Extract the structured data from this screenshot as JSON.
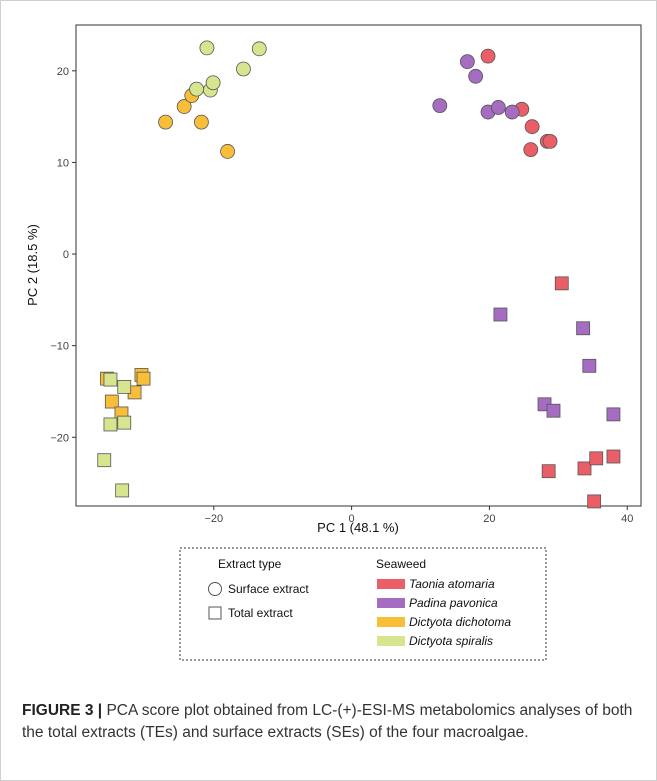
{
  "chart_data": {
    "type": "scatter",
    "xlabel": "PC 1 (48.1 %)",
    "ylabel": "PC 2 (18.5 %)",
    "xlim": [
      -40,
      42
    ],
    "ylim": [
      -27.5,
      25
    ],
    "x_ticks": [
      -20,
      0,
      20,
      40
    ],
    "y_ticks": [
      20,
      10,
      0,
      -10,
      -20
    ],
    "grid": false,
    "legend": {
      "extract_title": "Extract type",
      "extract_items": [
        {
          "name": "Surface extract",
          "shape": "circle"
        },
        {
          "name": "Total extract",
          "shape": "square"
        }
      ],
      "seaweed_title": "Seaweed",
      "placement": "bottom"
    },
    "series": [
      {
        "name": "Taonia atomaria",
        "color": "#EA5F67",
        "surface": [
          [
            19.8,
            21.6
          ],
          [
            24.7,
            15.8
          ],
          [
            26.2,
            13.9
          ],
          [
            28.4,
            12.3
          ],
          [
            28.8,
            12.3
          ],
          [
            26.0,
            11.4
          ]
        ],
        "total": [
          [
            30.5,
            -3.2
          ],
          [
            28.6,
            -23.7
          ],
          [
            33.8,
            -23.4
          ],
          [
            35.5,
            -22.3
          ],
          [
            38.0,
            -22.1
          ],
          [
            35.2,
            -27.0
          ]
        ]
      },
      {
        "name": "Padina pavonica",
        "color": "#A56CC1",
        "surface": [
          [
            16.8,
            21.0
          ],
          [
            18.0,
            19.4
          ],
          [
            12.8,
            16.2
          ],
          [
            19.8,
            15.5
          ],
          [
            21.3,
            16.0
          ],
          [
            23.3,
            15.5
          ]
        ],
        "total": [
          [
            21.6,
            -6.6
          ],
          [
            33.6,
            -8.1
          ],
          [
            34.5,
            -12.2
          ],
          [
            28.0,
            -16.4
          ],
          [
            29.3,
            -17.1
          ],
          [
            38.0,
            -17.5
          ]
        ]
      },
      {
        "name": "Dictyota dichotoma",
        "color": "#F8BE3A",
        "surface": [
          [
            -27.0,
            14.4
          ],
          [
            -24.3,
            16.1
          ],
          [
            -23.2,
            17.3
          ],
          [
            -21.8,
            14.4
          ],
          [
            -18.0,
            11.2
          ]
        ],
        "total": [
          [
            -35.5,
            -13.6
          ],
          [
            -30.5,
            -13.2
          ],
          [
            -30.2,
            -13.6
          ],
          [
            -34.8,
            -16.1
          ],
          [
            -31.5,
            -15.1
          ],
          [
            -33.4,
            -17.4
          ]
        ]
      },
      {
        "name": "Dictyota spiralis",
        "color": "#D7E58F",
        "surface": [
          [
            -22.5,
            18.0
          ],
          [
            -20.5,
            17.9
          ],
          [
            -20.1,
            18.7
          ],
          [
            -21.0,
            22.5
          ],
          [
            -15.7,
            20.2
          ],
          [
            -13.4,
            22.4
          ]
        ],
        "total": [
          [
            -35.0,
            -13.7
          ],
          [
            -33.0,
            -14.5
          ],
          [
            -35.0,
            -18.6
          ],
          [
            -33.0,
            -18.4
          ],
          [
            -35.9,
            -22.5
          ],
          [
            -33.3,
            -25.8
          ]
        ]
      }
    ]
  },
  "caption": {
    "label": "FIGURE 3 |",
    "text": "PCA score plot obtained from LC-(+)-ESI-MS metabolomics analyses of both the total extracts (TEs) and surface extracts (SEs) of the four macroalgae."
  }
}
